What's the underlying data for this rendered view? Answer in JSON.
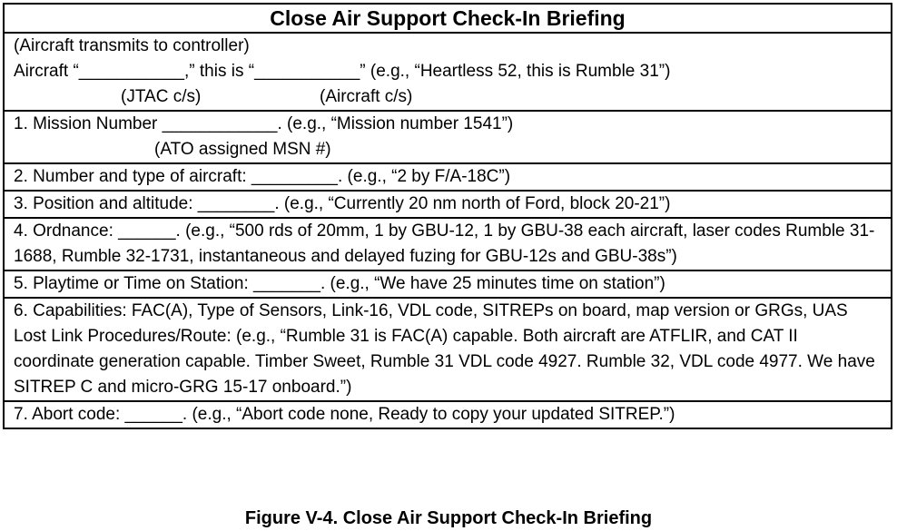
{
  "title": "Close Air Support Check-In Briefing",
  "intro": {
    "line1": "(Aircraft transmits to controller)",
    "line2": "Aircraft “___________,” this is “___________”  (e.g., “Heartless 52, this is Rumble 31”)",
    "label_jtac": "(JTAC c/s)",
    "label_aircraft": "(Aircraft c/s)"
  },
  "items": [
    {
      "text": "1. Mission Number ____________.  (e.g., “Mission number 1541”)",
      "sublabel": "(ATO assigned MSN #)"
    },
    {
      "text": "2. Number and type of aircraft:  _________. (e.g., “2 by F/A-18C”)"
    },
    {
      "text": "3. Position and altitude: ________. (e.g., “Currently 20 nm north of Ford, block 20-21”)"
    },
    {
      "text": "4. Ordnance: ______. (e.g., “500 rds of 20mm, 1 by GBU-12, 1 by GBU-38 each aircraft, laser codes Rumble 31-1688, Rumble 32-1731, instantaneous and delayed fuzing for GBU-12s and GBU-38s”)"
    },
    {
      "text": "5. Playtime or Time on Station: _______. (e.g., “We have 25 minutes time on station”)"
    },
    {
      "text": "6. Capabilities: FAC(A), Type of Sensors, Link-16, VDL code, SITREPs on board, map version or GRGs, UAS Lost Link Procedures/Route: (e.g., “Rumble 31 is FAC(A) capable.  Both aircraft are ATFLIR, and CAT II coordinate generation capable.  Timber Sweet, Rumble 31 VDL code 4927.  Rumble 32, VDL code 4977.  We have SITREP C and micro-GRG 15-17 onboard.”)"
    },
    {
      "text": "7. Abort code: ______.  (e.g., “Abort code none, Ready to copy your updated SITREP.”)"
    }
  ],
  "caption": "Figure V-4.  Close Air Support Check-In Briefing"
}
